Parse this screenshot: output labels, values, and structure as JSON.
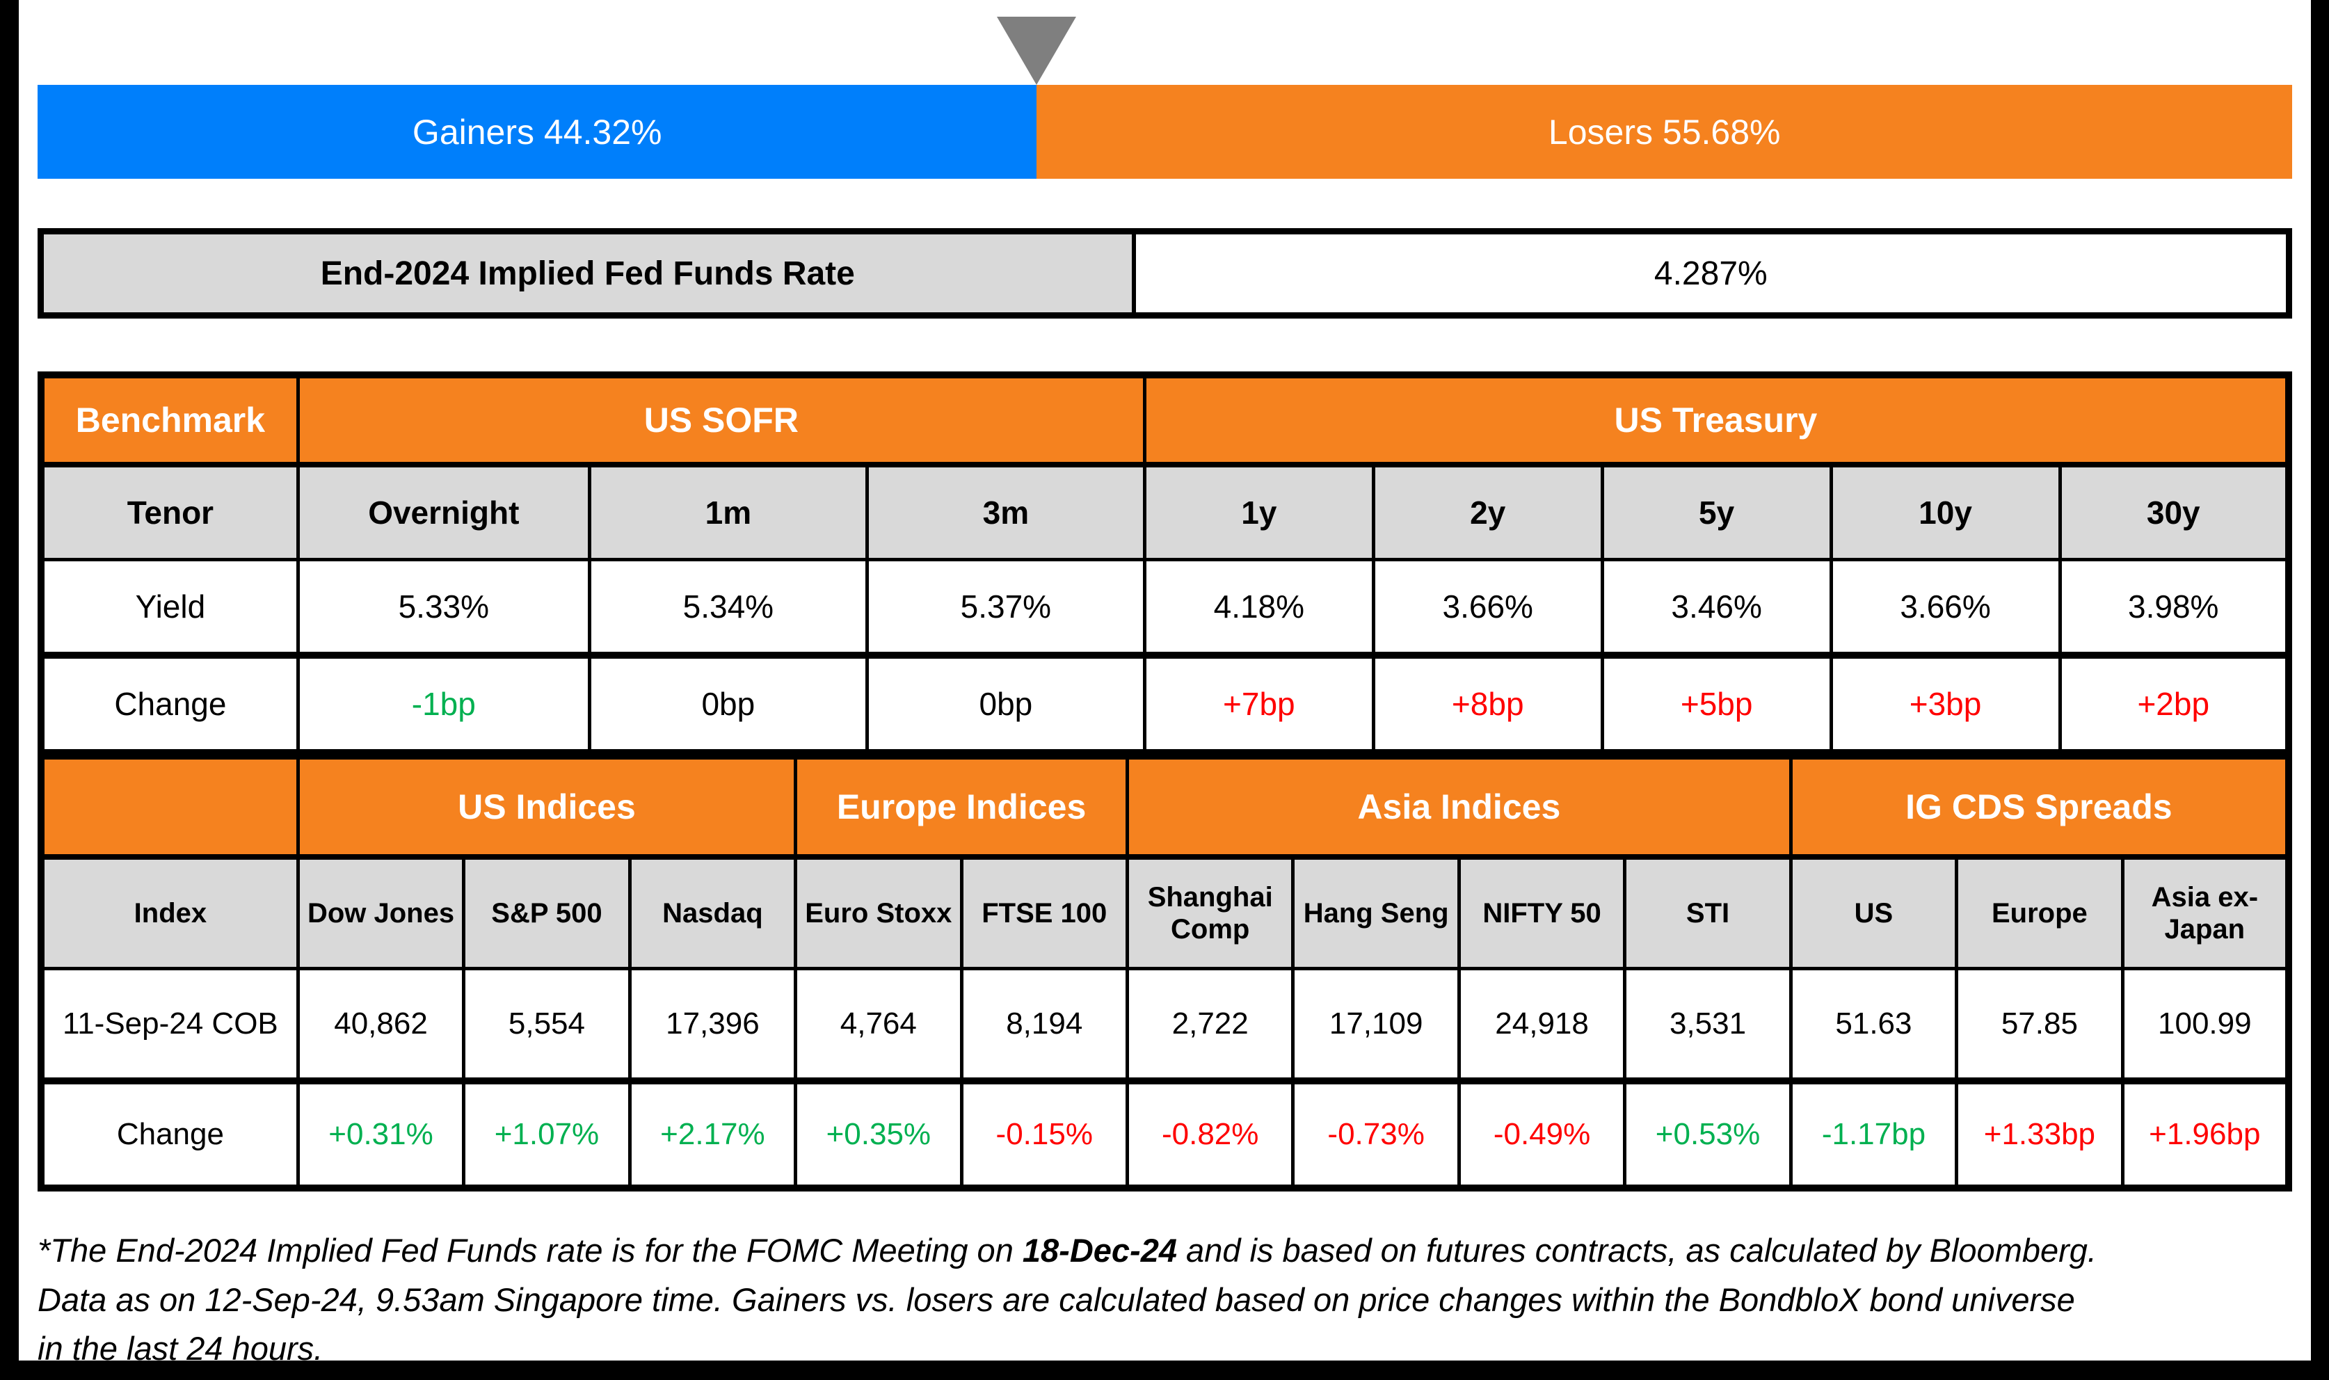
{
  "colors": {
    "gainers_blue": "#007FFB",
    "losers_orange": "#F5821F",
    "header_orange": "#F5821F",
    "cell_gray": "#D9D9D9",
    "marker_gray": "#7F7F7F",
    "positive_green": "#00B050",
    "negative_red": "#FF0000"
  },
  "gauge": {
    "marker": "triangle-down",
    "gainers": {
      "label": "Gainers 44.32%",
      "pct": 44.32
    },
    "losers": {
      "label": "Losers 55.68%",
      "pct": 55.68
    }
  },
  "fed_funds": {
    "label": "End-2024 Implied Fed Funds Rate",
    "value": "4.287%"
  },
  "benchmark": {
    "corner": "Benchmark",
    "group_sofr": "US SOFR",
    "group_treasury": "US Treasury",
    "row_labels": {
      "tenor": "Tenor",
      "yield": "Yield",
      "change": "Change"
    },
    "tenors": [
      "Overnight",
      "1m",
      "3m",
      "1y",
      "2y",
      "5y",
      "10y",
      "30y"
    ],
    "yields": [
      "5.33%",
      "5.34%",
      "5.37%",
      "4.18%",
      "3.66%",
      "3.46%",
      "3.66%",
      "3.98%"
    ],
    "changes": [
      {
        "text": "-1bp",
        "tone": "green"
      },
      {
        "text": "0bp",
        "tone": "black"
      },
      {
        "text": "0bp",
        "tone": "black"
      },
      {
        "text": "+7bp",
        "tone": "red"
      },
      {
        "text": "+8bp",
        "tone": "red"
      },
      {
        "text": "+5bp",
        "tone": "red"
      },
      {
        "text": "+3bp",
        "tone": "red"
      },
      {
        "text": "+2bp",
        "tone": "red"
      }
    ]
  },
  "indices": {
    "groups": {
      "us": "US Indices",
      "europe": "Europe Indices",
      "asia": "Asia Indices",
      "cds": "IG CDS Spreads"
    },
    "row_labels": {
      "index": "Index",
      "date": "11-Sep-24 COB",
      "change": "Change"
    },
    "names": [
      "Dow Jones",
      "S&P 500",
      "Nasdaq",
      "Euro Stoxx",
      "FTSE 100",
      "Shanghai Comp",
      "Hang Seng",
      "NIFTY 50",
      "STI",
      "US",
      "Europe",
      "Asia ex-Japan"
    ],
    "values": [
      "40,862",
      "5,554",
      "17,396",
      "4,764",
      "8,194",
      "2,722",
      "17,109",
      "24,918",
      "3,531",
      "51.63",
      "57.85",
      "100.99"
    ],
    "changes": [
      {
        "text": "+0.31%",
        "tone": "green"
      },
      {
        "text": "+1.07%",
        "tone": "green"
      },
      {
        "text": "+2.17%",
        "tone": "green"
      },
      {
        "text": "+0.35%",
        "tone": "green"
      },
      {
        "text": "-0.15%",
        "tone": "red"
      },
      {
        "text": "-0.82%",
        "tone": "red"
      },
      {
        "text": "-0.73%",
        "tone": "red"
      },
      {
        "text": "-0.49%",
        "tone": "red"
      },
      {
        "text": "+0.53%",
        "tone": "green"
      },
      {
        "text": "-1.17bp",
        "tone": "green"
      },
      {
        "text": "+1.33bp",
        "tone": "red"
      },
      {
        "text": "+1.96bp",
        "tone": "red"
      }
    ]
  },
  "footnote": {
    "pre": "*The End-2024 Implied Fed Funds rate is for the FOMC Meeting on ",
    "bold": "18-Dec-24",
    "post": " and is based on futures contracts, as calculated by Bloomberg. Data as on 12-Sep-24, 9.53am Singapore time. Gainers vs. losers are calculated based on price changes within the BondbloX bond universe in the last 24 hours."
  },
  "chart_data": [
    {
      "type": "bar",
      "title": "Gainers vs Losers (BondbloX bond universe, last 24 hours)",
      "orientation": "horizontal-stacked",
      "categories": [
        "Gainers",
        "Losers"
      ],
      "values": [
        44.32,
        55.68
      ],
      "unit": "%",
      "colors": [
        "#007FFB",
        "#F5821F"
      ],
      "annotations": [
        "gray triangle marker at 44.32% boundary"
      ]
    },
    {
      "type": "table",
      "title": "End-2024 Implied Fed Funds Rate",
      "rows": [
        [
          "End-2024 Implied Fed Funds Rate",
          "4.287%"
        ]
      ]
    },
    {
      "type": "table",
      "title": "Benchmark yields",
      "column_groups": {
        "US SOFR": [
          "Overnight",
          "1m",
          "3m"
        ],
        "US Treasury": [
          "1y",
          "2y",
          "5y",
          "10y",
          "30y"
        ]
      },
      "columns": [
        "Tenor",
        "Overnight",
        "1m",
        "3m",
        "1y",
        "2y",
        "5y",
        "10y",
        "30y"
      ],
      "rows": [
        [
          "Yield",
          "5.33%",
          "5.34%",
          "5.37%",
          "4.18%",
          "3.66%",
          "3.46%",
          "3.66%",
          "3.98%"
        ],
        [
          "Change",
          "-1bp",
          "0bp",
          "0bp",
          "+7bp",
          "+8bp",
          "+5bp",
          "+3bp",
          "+2bp"
        ]
      ]
    },
    {
      "type": "table",
      "title": "Equity indices and IG CDS spreads",
      "column_groups": {
        "US Indices": [
          "Dow Jones",
          "S&P 500",
          "Nasdaq"
        ],
        "Europe Indices": [
          "Euro Stoxx",
          "FTSE 100"
        ],
        "Asia Indices": [
          "Shanghai Comp",
          "Hang Seng",
          "NIFTY 50",
          "STI"
        ],
        "IG CDS Spreads": [
          "US",
          "Europe",
          "Asia ex-Japan"
        ]
      },
      "columns": [
        "Index",
        "Dow Jones",
        "S&P 500",
        "Nasdaq",
        "Euro Stoxx",
        "FTSE 100",
        "Shanghai Comp",
        "Hang Seng",
        "NIFTY 50",
        "STI",
        "US",
        "Europe",
        "Asia ex-Japan"
      ],
      "rows": [
        [
          "11-Sep-24 COB",
          "40,862",
          "5,554",
          "17,396",
          "4,764",
          "8,194",
          "2,722",
          "17,109",
          "24,918",
          "3,531",
          "51.63",
          "57.85",
          "100.99"
        ],
        [
          "Change",
          "+0.31%",
          "+1.07%",
          "+2.17%",
          "+0.35%",
          "-0.15%",
          "-0.82%",
          "-0.73%",
          "-0.49%",
          "+0.53%",
          "-1.17bp",
          "+1.33bp",
          "+1.96bp"
        ]
      ]
    }
  ]
}
